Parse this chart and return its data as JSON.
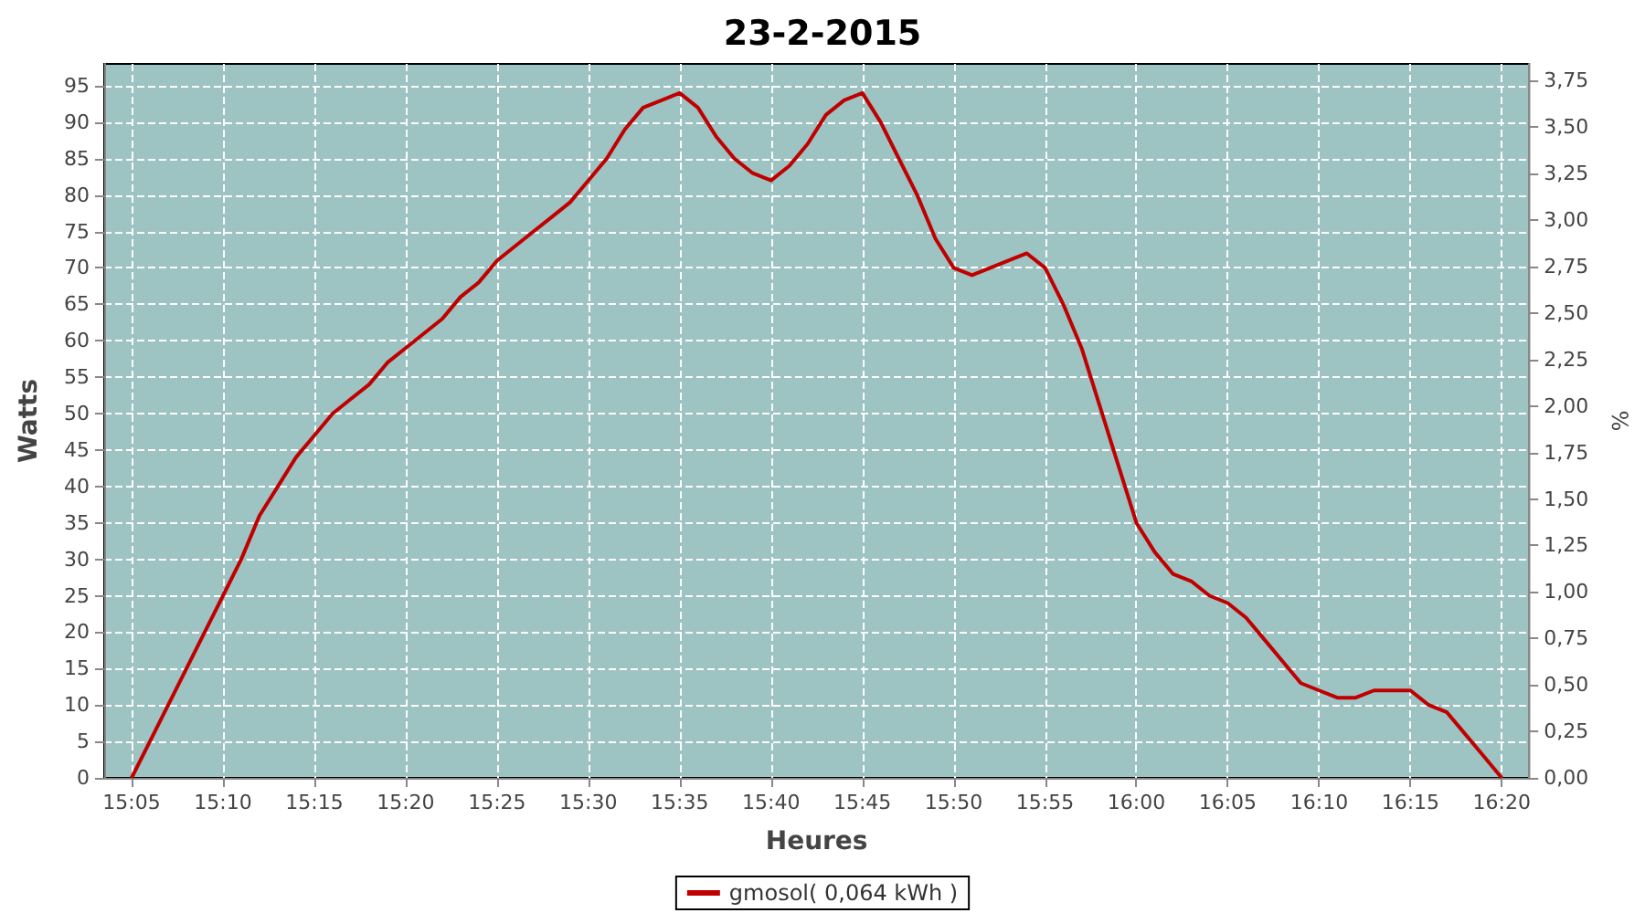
{
  "chart_data": {
    "type": "line",
    "title": "23-2-2015",
    "xlabel": "Heures",
    "ylabel": "Watts",
    "y2label": "%",
    "xlim": [
      15.0583,
      16.3583
    ],
    "xticks": [
      {
        "value": 15.0833,
        "label": "15:05"
      },
      {
        "value": 15.1667,
        "label": "15:10"
      },
      {
        "value": 15.25,
        "label": "15:15"
      },
      {
        "value": 15.3333,
        "label": "15:20"
      },
      {
        "value": 15.4167,
        "label": "15:25"
      },
      {
        "value": 15.5,
        "label": "15:30"
      },
      {
        "value": 15.5833,
        "label": "15:35"
      },
      {
        "value": 15.6667,
        "label": "15:40"
      },
      {
        "value": 15.75,
        "label": "15:45"
      },
      {
        "value": 15.8333,
        "label": "15:50"
      },
      {
        "value": 15.9167,
        "label": "15:55"
      },
      {
        "value": 16,
        "label": "16:00"
      },
      {
        "value": 16.0833,
        "label": "16:05"
      },
      {
        "value": 16.1667,
        "label": "16:10"
      },
      {
        "value": 16.25,
        "label": "16:15"
      },
      {
        "value": 16.3333,
        "label": "16:20"
      }
    ],
    "ylim": [
      0,
      98
    ],
    "yticks": [
      0,
      5,
      10,
      15,
      20,
      25,
      30,
      35,
      40,
      45,
      50,
      55,
      60,
      65,
      70,
      75,
      80,
      85,
      90,
      95
    ],
    "y2lim": [
      0,
      3.84
    ],
    "y2ticks": [
      {
        "value": 0,
        "label": "0,00"
      },
      {
        "value": 0.25,
        "label": "0,25"
      },
      {
        "value": 0.5,
        "label": "0,50"
      },
      {
        "value": 0.75,
        "label": "0,75"
      },
      {
        "value": 1,
        "label": "1,00"
      },
      {
        "value": 1.25,
        "label": "1,25"
      },
      {
        "value": 1.5,
        "label": "1,50"
      },
      {
        "value": 1.75,
        "label": "1,75"
      },
      {
        "value": 2,
        "label": "2,00"
      },
      {
        "value": 2.25,
        "label": "2,25"
      },
      {
        "value": 2.5,
        "label": "2,50"
      },
      {
        "value": 2.75,
        "label": "2,75"
      },
      {
        "value": 3,
        "label": "3,00"
      },
      {
        "value": 3.25,
        "label": "3,25"
      },
      {
        "value": 3.5,
        "label": "3,50"
      },
      {
        "value": 3.75,
        "label": "3,75"
      }
    ],
    "x": [
      15.0833,
      15.1,
      15.1167,
      15.1333,
      15.15,
      15.1667,
      15.1833,
      15.2,
      15.2167,
      15.2333,
      15.25,
      15.2667,
      15.2833,
      15.3,
      15.3167,
      15.3333,
      15.35,
      15.3667,
      15.3833,
      15.4,
      15.4167,
      15.4333,
      15.45,
      15.4667,
      15.4833,
      15.5,
      15.5167,
      15.5333,
      15.55,
      15.5667,
      15.5833,
      15.6,
      15.6167,
      15.6333,
      15.65,
      15.6667,
      15.6833,
      15.7,
      15.7167,
      15.7333,
      15.75,
      15.7667,
      15.7833,
      15.8,
      15.8167,
      15.8333,
      15.85,
      15.8667,
      15.8833,
      15.9,
      15.9167,
      15.9333,
      15.95,
      15.9667,
      15.9833,
      16,
      16.0167,
      16.0333,
      16.05,
      16.0667,
      16.0833,
      16.1,
      16.1167,
      16.1333,
      16.15,
      16.1667,
      16.1833,
      16.2,
      16.2167,
      16.2333,
      16.25,
      16.2667,
      16.2833,
      16.3,
      16.3167,
      16.3333
    ],
    "series": [
      {
        "name": "gmosol( 0,064 kWh )",
        "color": "#c00000",
        "values": [
          0,
          5,
          10,
          15,
          20,
          25,
          30,
          36,
          40,
          44,
          47,
          50,
          52,
          54,
          57,
          59,
          61,
          63,
          66,
          68,
          71,
          73,
          75,
          77,
          79,
          82,
          85,
          89,
          92,
          93,
          94,
          92,
          88,
          85,
          83,
          82,
          84,
          87,
          91,
          93,
          94,
          90,
          85,
          80,
          74,
          70,
          69,
          70,
          71,
          72,
          70,
          65,
          59,
          51,
          43,
          35,
          31,
          28,
          27,
          25,
          24,
          22,
          19,
          16,
          13,
          12,
          11,
          11,
          12,
          12,
          12,
          10,
          9,
          6,
          3,
          0
        ]
      }
    ],
    "grid": true,
    "legend": "bottom",
    "marker": "none",
    "line_style": "solid"
  }
}
